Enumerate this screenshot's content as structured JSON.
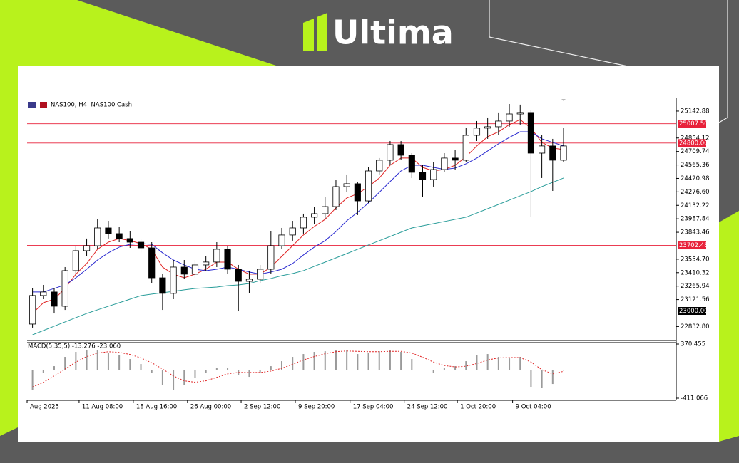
{
  "brand": "Ultima",
  "chart_data": {
    "type": "candlestick",
    "title": "NAS100, H4:  NAS100 Cash",
    "xlim": [
      -0.5,
      59.4
    ],
    "xticks": [
      {
        "value": -0.5,
        "label": "Aug 2025"
      },
      {
        "value": 4.3,
        "label": "11 Aug 08:00"
      },
      {
        "value": 9.3,
        "label": "18 Aug 16:00"
      },
      {
        "value": 14.3,
        "label": "26 Aug 00:00"
      },
      {
        "value": 19.25,
        "label": "2 Sep 12:00"
      },
      {
        "value": 24.25,
        "label": "9 Sep 20:00"
      },
      {
        "value": 29.3,
        "label": "17 Sep 04:00"
      },
      {
        "value": 34.3,
        "label": "24 Sep 12:00"
      },
      {
        "value": 39.2,
        "label": "1 Oct 20:00"
      },
      {
        "value": 44.3,
        "label": "9 Oct 04:00"
      }
    ],
    "ylim": [
      22683,
      25280
    ],
    "yticks": [
      25142.88,
      24854.12,
      24709.74,
      24565.36,
      24420.98,
      {
        "value": 24276.6,
        "label": "24276.60"
      },
      24132.22,
      23987.84,
      23843.46,
      {
        "value": 23554.7,
        "label": "23554.70"
      },
      23410.32,
      23265.94,
      23121.56,
      {
        "value": 22832.8,
        "label": "22832.80"
      }
    ],
    "open": [
      22859,
      23165,
      23203,
      23050,
      23432,
      23646,
      23699,
      23890,
      23829,
      23776,
      23737,
      23676,
      23355,
      23188,
      23470,
      23394,
      23493,
      23524,
      23661,
      23447,
      23317,
      23340,
      23447,
      23699,
      23814,
      23890,
      24005,
      24043,
      24119,
      24333,
      24364,
      24180,
      24501,
      24616,
      24784,
      24669,
      24486,
      24409,
      24516,
      24639,
      24616,
      24883,
      24960,
      24975,
      25036,
      25112,
      25128,
      24692,
      24769,
      24616
    ],
    "high": [
      23241,
      23279,
      23241,
      23470,
      23699,
      23776,
      23982,
      23966,
      23905,
      23852,
      23776,
      23737,
      23394,
      23546,
      23546,
      23546,
      23585,
      23737,
      23699,
      23493,
      23432,
      23493,
      23852,
      23890,
      23966,
      24043,
      24119,
      24226,
      24409,
      24463,
      24386,
      24539,
      24639,
      24822,
      24822,
      24692,
      24562,
      24593,
      24692,
      24730,
      24960,
      25036,
      25074,
      25128,
      25219,
      25212,
      25151,
      24883,
      24845,
      24960
    ],
    "low": [
      22821,
      23126,
      22973,
      23011,
      23394,
      23585,
      23661,
      23776,
      23737,
      23676,
      23623,
      23294,
      23011,
      23126,
      23340,
      23355,
      23432,
      23470,
      23394,
      22996,
      23188,
      23294,
      23394,
      23661,
      23753,
      23829,
      23928,
      23982,
      24081,
      24272,
      24028,
      24157,
      24463,
      24562,
      24616,
      24425,
      24226,
      24333,
      24486,
      24516,
      24593,
      24822,
      24845,
      24883,
      24975,
      24998,
      24005,
      24425,
      24287,
      24593
    ],
    "close": [
      23165,
      23203,
      23050,
      23432,
      23646,
      23699,
      23890,
      23829,
      23776,
      23737,
      23676,
      23355,
      23188,
      23470,
      23394,
      23493,
      23524,
      23661,
      23447,
      23317,
      23340,
      23447,
      23699,
      23814,
      23890,
      24005,
      24043,
      24119,
      24333,
      24364,
      24180,
      24501,
      24616,
      24784,
      24669,
      24486,
      24409,
      24516,
      24639,
      24616,
      24883,
      24960,
      24975,
      25036,
      25112,
      25128,
      24692,
      24769,
      24616,
      24769
    ],
    "overlays": [
      {
        "color": "#e02424",
        "values": [
          22973,
          23088,
          23126,
          23241,
          23394,
          23508,
          23661,
          23737,
          23776,
          23753,
          23722,
          23661,
          23470,
          23394,
          23355,
          23394,
          23447,
          23523,
          23523,
          23447,
          23394,
          23394,
          23470,
          23585,
          23699,
          23814,
          23905,
          23982,
          24104,
          24211,
          24257,
          24333,
          24425,
          24562,
          24639,
          24639,
          24539,
          24501,
          24517,
          24562,
          24654,
          24769,
          24868,
          24921,
          24998,
          25051,
          24960,
          24807,
          24746,
          24730
        ]
      },
      {
        "color": "#2a2ad0",
        "values": [
          23203,
          23203,
          23241,
          23279,
          23355,
          23447,
          23546,
          23623,
          23684,
          23714,
          23722,
          23714,
          23623,
          23546,
          23493,
          23447,
          23432,
          23447,
          23470,
          23447,
          23417,
          23394,
          23417,
          23447,
          23508,
          23600,
          23684,
          23753,
          23852,
          23967,
          24058,
          24158,
          24272,
          24387,
          24501,
          24562,
          24562,
          24539,
          24517,
          24532,
          24578,
          24639,
          24715,
          24792,
          24860,
          24921,
          24921,
          24845,
          24807,
          24769
        ]
      },
      {
        "color": "#2a9d9a",
        "values": [
          22744,
          22790,
          22836,
          22882,
          22928,
          22973,
          23012,
          23050,
          23088,
          23126,
          23164,
          23180,
          23195,
          23210,
          23226,
          23241,
          23248,
          23256,
          23271,
          23279,
          23294,
          23325,
          23348,
          23378,
          23401,
          23432,
          23478,
          23523,
          23569,
          23615,
          23661,
          23707,
          23753,
          23798,
          23844,
          23890,
          23913,
          23936,
          23959,
          23982,
          24005,
          24050,
          24096,
          24142,
          24188,
          24234,
          24280,
          24333,
          24379,
          24425
        ]
      }
    ],
    "levels": [
      {
        "value": 25007.5,
        "label": "25007.50",
        "color": "#e8213a"
      },
      {
        "value": 24800,
        "label": "24800.00",
        "color": "#e8213a"
      },
      {
        "value": 23702.48,
        "label": "23702.48",
        "color": "#e8213a"
      },
      {
        "value": 23000,
        "label": "23000.00",
        "color": "#000000"
      }
    ],
    "macd": {
      "label": "MACD(5,35,5) -13.276 -23.060",
      "ylim": [
        -411.066,
        370.455
      ],
      "yticks": [
        370.455,
        -411.066
      ],
      "histogram_color": "#9a9a9a",
      "signal_color": "#e02424",
      "histogram": [
        -288,
        -51,
        51,
        185,
        257,
        288,
        288,
        247,
        206,
        154,
        82,
        -51,
        -226,
        -288,
        -226,
        -123,
        -51,
        31,
        21,
        -82,
        -103,
        -51,
        51,
        123,
        185,
        226,
        257,
        267,
        288,
        278,
        226,
        247,
        267,
        288,
        257,
        154,
        0,
        -51,
        21,
        51,
        123,
        206,
        226,
        185,
        164,
        185,
        -257,
        -267,
        -206,
        -13.276
      ],
      "signal": [
        -250,
        -180,
        -90,
        10,
        110,
        190,
        240,
        260,
        250,
        220,
        170,
        100,
        10,
        -90,
        -160,
        -180,
        -160,
        -110,
        -60,
        -40,
        -40,
        -40,
        -20,
        20,
        80,
        140,
        190,
        230,
        260,
        270,
        265,
        260,
        260,
        265,
        265,
        240,
        180,
        110,
        60,
        40,
        50,
        90,
        140,
        170,
        175,
        175,
        110,
        0,
        -60,
        -23.06
      ]
    }
  }
}
